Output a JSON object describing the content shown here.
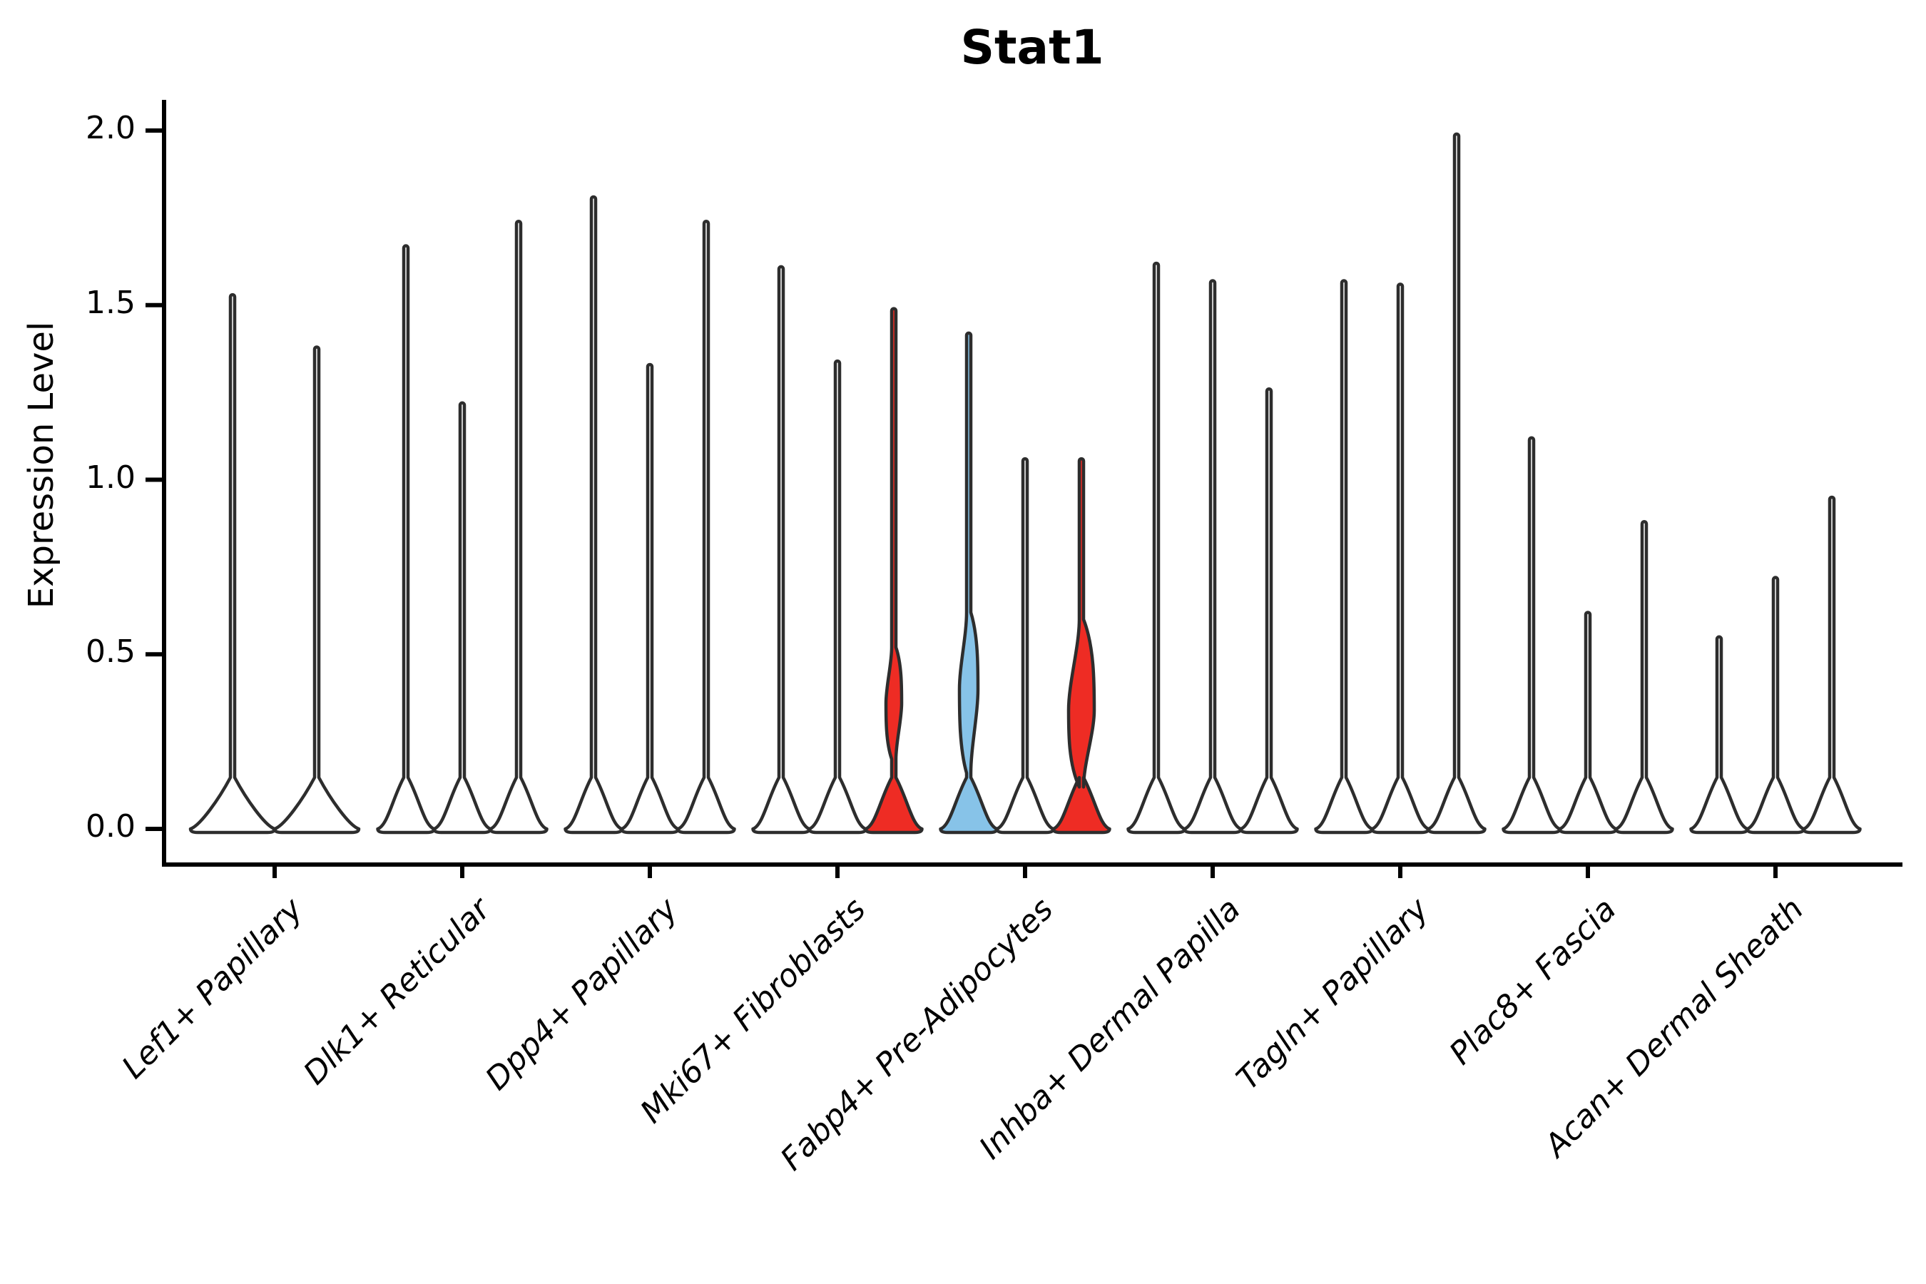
{
  "title": "Stat1",
  "ylabel": "Expression Level",
  "ytick_labels": [
    "0.0",
    "0.5",
    "1.0",
    "1.5",
    "2.0"
  ],
  "chart_data": {
    "type": "violin",
    "title": "Stat1",
    "xlabel": "",
    "ylabel": "Expression Level",
    "ylim": [
      0.0,
      2.05
    ],
    "yticks": [
      0.0,
      0.5,
      1.0,
      1.5,
      2.0
    ],
    "grid": false,
    "legend": "none",
    "categories": [
      "Lef1+ Papillary",
      "Dlk1+ Reticular",
      "Dpp4+ Papillary",
      "Mki67+ Fibroblasts",
      "Fabp4+ Pre-Adipocytes",
      "Inhba+ Dermal Papilla",
      "Tagln+ Papillary",
      "Plac8+ Fascia",
      "Acan+ Dermal Sheath"
    ],
    "description": "Violin plot of Stat1 expression; most violins collapse to a flat base at 0 with a thin spike to the maximum expression value. Three violins show visible density bulges and are colored.",
    "groups": [
      {
        "label": "Lef1+ Papillary",
        "violins": [
          {
            "max": 1.53,
            "color": "black"
          },
          {
            "max": 1.38,
            "color": "black"
          }
        ]
      },
      {
        "label": "Dlk1+ Reticular",
        "violins": [
          {
            "max": 1.67,
            "color": "black"
          },
          {
            "max": 1.22,
            "color": "black"
          },
          {
            "max": 1.74,
            "color": "black"
          }
        ]
      },
      {
        "label": "Dpp4+ Papillary",
        "violins": [
          {
            "max": 1.81,
            "color": "black"
          },
          {
            "max": 1.33,
            "color": "black"
          },
          {
            "max": 1.74,
            "color": "black"
          }
        ]
      },
      {
        "label": "Mki67+ Fibroblasts",
        "violins": [
          {
            "max": 1.61,
            "color": "black"
          },
          {
            "max": 1.34,
            "color": "black"
          },
          {
            "max": 1.49,
            "color": "red",
            "bulge": {
              "top": 0.52,
              "peak": 0.36,
              "bottom": 0.2,
              "half_width": 8
            }
          }
        ]
      },
      {
        "label": "Fabp4+ Pre-Adipocytes",
        "violins": [
          {
            "max": 1.42,
            "color": "blue",
            "bulge": {
              "top": 0.62,
              "peak": 0.4,
              "bottom": 0.16,
              "half_width": 10
            }
          },
          {
            "max": 1.06,
            "color": "black"
          },
          {
            "max": 1.06,
            "color": "red",
            "bulge": {
              "top": 0.6,
              "peak": 0.34,
              "bottom": 0.12,
              "half_width": 15
            }
          }
        ]
      },
      {
        "label": "Inhba+ Dermal Papilla",
        "violins": [
          {
            "max": 1.62,
            "color": "black"
          },
          {
            "max": 1.57,
            "color": "black"
          },
          {
            "max": 1.26,
            "color": "black"
          }
        ]
      },
      {
        "label": "Tagln+ Papillary",
        "violins": [
          {
            "max": 1.57,
            "color": "black"
          },
          {
            "max": 1.56,
            "color": "black"
          },
          {
            "max": 1.99,
            "color": "black"
          }
        ]
      },
      {
        "label": "Plac8+ Fascia",
        "violins": [
          {
            "max": 1.12,
            "color": "black"
          },
          {
            "max": 0.62,
            "color": "black"
          },
          {
            "max": 0.88,
            "color": "black"
          }
        ]
      },
      {
        "label": "Acan+ Dermal Sheath",
        "violins": [
          {
            "max": 0.55,
            "color": "black"
          },
          {
            "max": 0.72,
            "color": "black"
          },
          {
            "max": 0.95,
            "color": "black"
          }
        ]
      }
    ],
    "colors": {
      "red": "#EE2C24",
      "blue": "#87C3E8",
      "plain_fill": "#FFFFFF",
      "outline": "#2D2D2D",
      "axis": "#000000"
    }
  }
}
